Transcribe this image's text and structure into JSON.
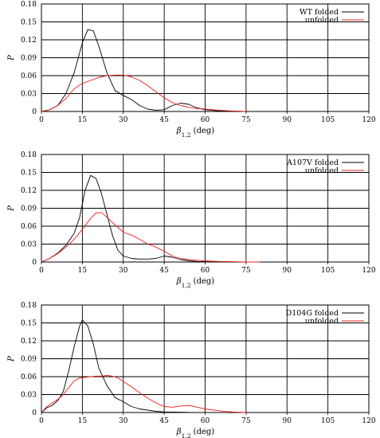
{
  "chart_data": [
    {
      "type": "line",
      "xlabel": "β1,2 (deg)",
      "xlabel_main": "β",
      "xlabel_sub": "1,2",
      "xlabel_unit": " (deg)",
      "ylabel": "P",
      "xlim": [
        0,
        120
      ],
      "ylim": [
        0,
        0.18
      ],
      "xticks": [
        0,
        15,
        30,
        45,
        60,
        75,
        90,
        105,
        120
      ],
      "yticks": [
        "0",
        "0.03",
        "0.06",
        "0.09",
        "0.12",
        "0.15",
        "0.18"
      ],
      "grid": true,
      "legend": "top-right",
      "series": [
        {
          "name": "WT folded",
          "color": "#000000",
          "x": [
            0,
            3,
            6,
            9,
            12,
            15,
            17,
            19,
            21,
            24,
            27,
            30,
            33,
            36,
            39,
            42,
            45,
            48,
            51,
            54,
            57,
            60,
            65,
            70,
            75
          ],
          "y": [
            0,
            0.003,
            0.01,
            0.03,
            0.065,
            0.115,
            0.137,
            0.135,
            0.11,
            0.065,
            0.035,
            0.027,
            0.02,
            0.01,
            0.004,
            0.002,
            0.003,
            0.01,
            0.014,
            0.012,
            0.006,
            0.003,
            0.001,
            0.0005,
            0
          ]
        },
        {
          "name": "unfolded",
          "color": "#e8201a",
          "x": [
            0,
            3,
            6,
            9,
            12,
            15,
            18,
            21,
            24,
            27,
            30,
            33,
            36,
            39,
            42,
            45,
            48,
            51,
            54,
            57,
            60,
            65,
            70,
            75
          ],
          "y": [
            0,
            0.003,
            0.01,
            0.022,
            0.038,
            0.047,
            0.052,
            0.057,
            0.06,
            0.061,
            0.061,
            0.058,
            0.052,
            0.043,
            0.033,
            0.023,
            0.015,
            0.01,
            0.007,
            0.005,
            0.004,
            0.002,
            0.001,
            0
          ]
        }
      ]
    },
    {
      "type": "line",
      "xlabel": "β1,2 (deg)",
      "xlabel_main": "β",
      "xlabel_sub": "1,2",
      "xlabel_unit": " (deg)",
      "ylabel": "P",
      "xlim": [
        0,
        120
      ],
      "ylim": [
        0,
        0.18
      ],
      "xticks": [
        0,
        15,
        30,
        45,
        60,
        75,
        90,
        105,
        120
      ],
      "yticks": [
        "0",
        "0.03",
        "0.06",
        "0.09",
        "0.12",
        "0.15",
        "0.18"
      ],
      "grid": true,
      "legend": "top-right",
      "series": [
        {
          "name": "A107V folded",
          "color": "#000000",
          "x": [
            0,
            3,
            6,
            9,
            12,
            14,
            16,
            18,
            20,
            22,
            24,
            26,
            28,
            30,
            33,
            36,
            39,
            42,
            45,
            48,
            51,
            54,
            57,
            60,
            65,
            70
          ],
          "y": [
            0,
            0.006,
            0.015,
            0.028,
            0.048,
            0.075,
            0.12,
            0.145,
            0.14,
            0.115,
            0.08,
            0.045,
            0.02,
            0.01,
            0.006,
            0.005,
            0.005,
            0.006,
            0.01,
            0.008,
            0.004,
            0.002,
            0.001,
            0.0005,
            0,
            0
          ]
        },
        {
          "name": "unfolded",
          "color": "#e8201a",
          "x": [
            0,
            3,
            6,
            9,
            12,
            15,
            18,
            20,
            22,
            24,
            27,
            30,
            33,
            36,
            39,
            42,
            45,
            48,
            51,
            54,
            57,
            60,
            65,
            70,
            75,
            80
          ],
          "y": [
            0,
            0.006,
            0.014,
            0.025,
            0.038,
            0.055,
            0.073,
            0.082,
            0.083,
            0.075,
            0.062,
            0.05,
            0.045,
            0.038,
            0.03,
            0.025,
            0.018,
            0.01,
            0.006,
            0.004,
            0.003,
            0.002,
            0.001,
            0.0005,
            0,
            0
          ]
        }
      ]
    },
    {
      "type": "line",
      "xlabel": "β1,2 (deg)",
      "xlabel_main": "β",
      "xlabel_sub": "1,2",
      "xlabel_unit": " (deg)",
      "ylabel": "P",
      "xlim": [
        0,
        120
      ],
      "ylim": [
        0,
        0.18
      ],
      "xticks": [
        0,
        15,
        30,
        45,
        60,
        75,
        90,
        105,
        120
      ],
      "yticks": [
        "0",
        "0.03",
        "0.06",
        "0.09",
        "0.12",
        "0.15",
        "0.18"
      ],
      "grid": true,
      "legend": "top-right",
      "series": [
        {
          "name": "D104G folded",
          "color": "#000000",
          "x": [
            0,
            2,
            4,
            6,
            8,
            10,
            12,
            14,
            15,
            17,
            19,
            21,
            24,
            27,
            30,
            33,
            36,
            39,
            42,
            45,
            48,
            51,
            55,
            60
          ],
          "y": [
            0,
            0.008,
            0.012,
            0.02,
            0.035,
            0.07,
            0.11,
            0.145,
            0.155,
            0.145,
            0.115,
            0.075,
            0.045,
            0.025,
            0.018,
            0.01,
            0.006,
            0.004,
            0.002,
            0.001,
            0.0008,
            0.0005,
            0.0002,
            0
          ]
        },
        {
          "name": "unfolded",
          "color": "#e8201a",
          "x": [
            0,
            2,
            4,
            6,
            8,
            10,
            12,
            14,
            16,
            18,
            20,
            22,
            24,
            26,
            28,
            30,
            33,
            36,
            39,
            42,
            45,
            48,
            51,
            54,
            57,
            60,
            65,
            70,
            75
          ],
          "y": [
            0,
            0.01,
            0.016,
            0.022,
            0.03,
            0.042,
            0.053,
            0.058,
            0.059,
            0.06,
            0.061,
            0.061,
            0.062,
            0.061,
            0.058,
            0.052,
            0.043,
            0.033,
            0.024,
            0.016,
            0.01,
            0.009,
            0.011,
            0.012,
            0.009,
            0.006,
            0.003,
            0.001,
            0
          ]
        }
      ]
    }
  ]
}
